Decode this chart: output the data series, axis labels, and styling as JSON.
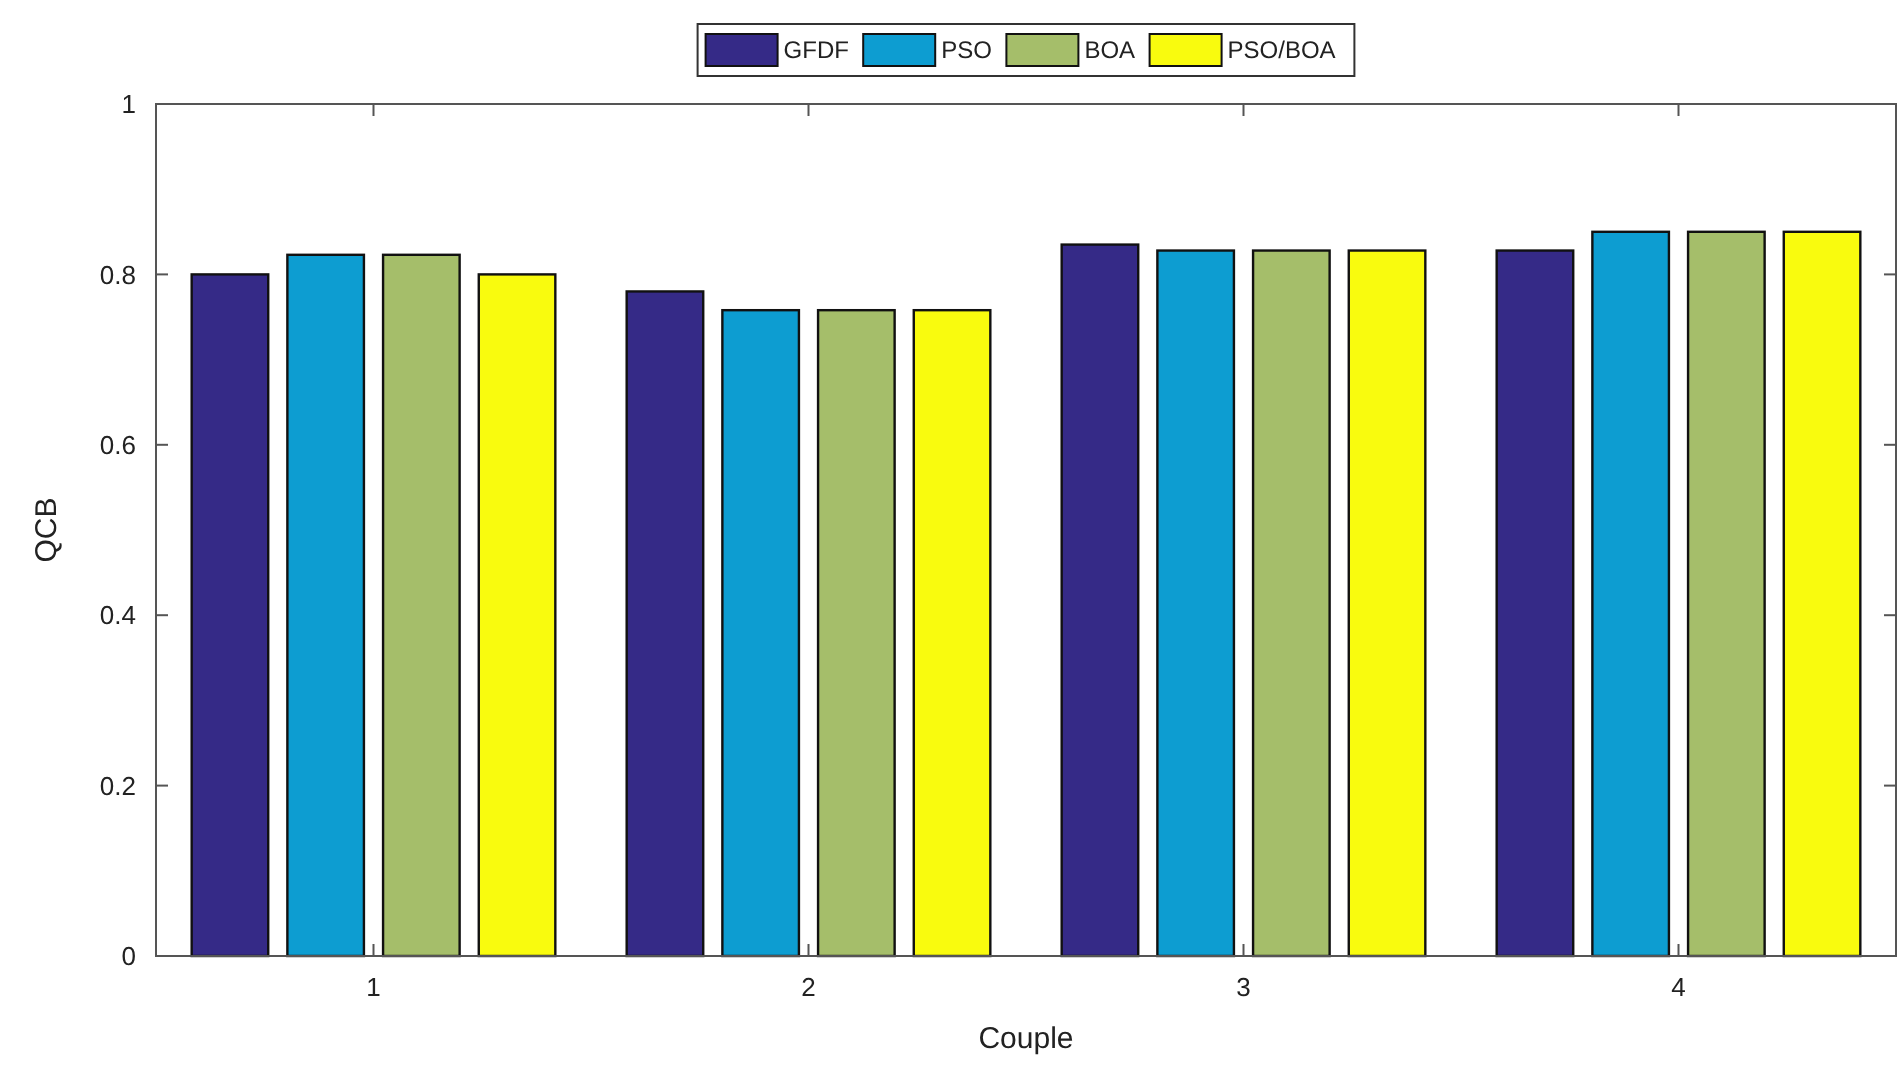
{
  "chart_data": {
    "type": "bar",
    "xlabel": "Couple",
    "ylabel": "QCB",
    "categories": [
      "1",
      "2",
      "3",
      "4"
    ],
    "series": [
      {
        "name": "GFDF",
        "color": "#352a87",
        "values": [
          0.8,
          0.78,
          0.835,
          0.828
        ]
      },
      {
        "name": "PSO",
        "color": "#0d9dd1",
        "values": [
          0.823,
          0.758,
          0.828,
          0.85
        ]
      },
      {
        "name": "BOA",
        "color": "#a5be6a",
        "values": [
          0.823,
          0.758,
          0.828,
          0.85
        ]
      },
      {
        "name": "PSO/BOA",
        "color": "#f9fb0e",
        "values": [
          0.8,
          0.758,
          0.828,
          0.85
        ]
      }
    ],
    "ylim": [
      0,
      1
    ],
    "yticks": [
      0,
      0.2,
      0.4,
      0.6,
      0.8,
      1
    ],
    "grid": false,
    "legend": "top"
  }
}
